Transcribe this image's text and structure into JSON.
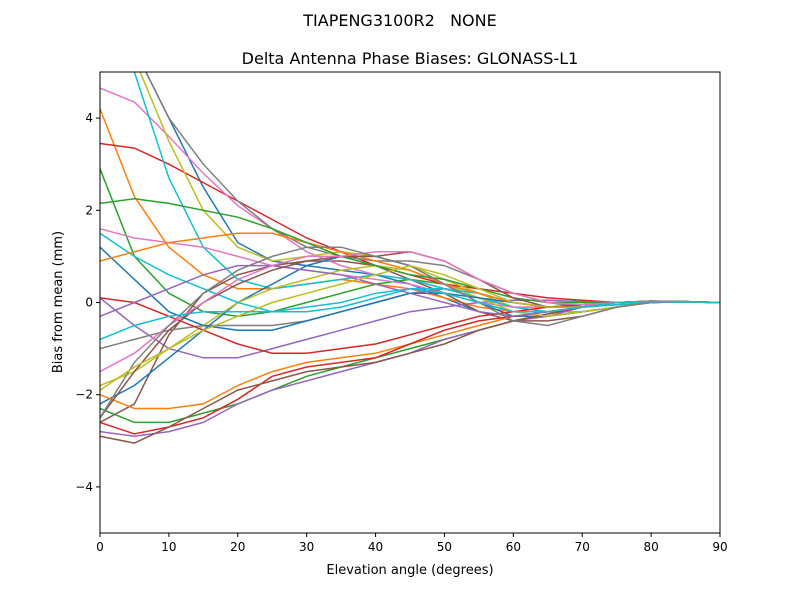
{
  "chart_data": {
    "type": "line",
    "suptitle": "TIAPENG3100R2   NONE",
    "title": "Delta Antenna Phase Biases: GLONASS-L1",
    "xlabel": "Elevation angle (degrees)",
    "ylabel": "Bias from mean (mm)",
    "xlim": [
      0,
      90
    ],
    "ylim": [
      -5,
      5
    ],
    "xticks": [
      0,
      10,
      20,
      30,
      40,
      50,
      60,
      70,
      80,
      90
    ],
    "yticks": [
      -4,
      -2,
      0,
      2,
      4
    ],
    "ytick_labels": [
      "−4",
      "−2",
      "0",
      "2",
      "4"
    ],
    "grid": false,
    "colors": [
      "#1f77b4",
      "#ff7f0e",
      "#2ca02c",
      "#d62728",
      "#9467bd",
      "#8c564b",
      "#e377c2",
      "#7f7f7f",
      "#bcbd22",
      "#17becf"
    ],
    "x": [
      0,
      5,
      10,
      15,
      20,
      25,
      30,
      35,
      40,
      45,
      50,
      55,
      60,
      65,
      70,
      75,
      80,
      85,
      90
    ],
    "series": [
      {
        "values": [
          6.5,
          5.5,
          4,
          2.5,
          1.3,
          0.9,
          0.8,
          0.7,
          0.6,
          0.4,
          0.1,
          -0.2,
          -0.3,
          -0.3,
          -0.2,
          -0.1,
          0,
          0.02,
          0
        ]
      },
      {
        "values": [
          4.2,
          2.3,
          1.2,
          0.6,
          0.3,
          0.3,
          0.4,
          0.5,
          0.4,
          0.3,
          0.1,
          -0.1,
          -0.2,
          -0.2,
          -0.1,
          0,
          0.03,
          0.02,
          0
        ]
      },
      {
        "values": [
          2.9,
          1.0,
          0.2,
          -0.2,
          -0.3,
          -0.2,
          0,
          0.2,
          0.4,
          0.5,
          0.4,
          0.2,
          0,
          -0.1,
          -0.1,
          0,
          0.02,
          0.01,
          0
        ]
      },
      {
        "values": [
          3.45,
          3.35,
          3.0,
          2.6,
          2.2,
          1.8,
          1.4,
          1.1,
          0.8,
          0.6,
          0.4,
          0.3,
          0.2,
          0.1,
          0.05,
          0,
          0.02,
          0.01,
          0
        ]
      },
      {
        "values": [
          0.1,
          -0.5,
          -1.0,
          -1.2,
          -1.2,
          -1.0,
          -0.8,
          -0.6,
          -0.4,
          -0.2,
          -0.1,
          0,
          0.05,
          0.05,
          0.02,
          0,
          0.02,
          0.01,
          0
        ]
      },
      {
        "values": [
          -2.6,
          -2.2,
          -0.7,
          0.2,
          0.6,
          0.8,
          0.9,
          0.9,
          0.8,
          0.5,
          0.2,
          -0.2,
          -0.4,
          -0.4,
          -0.3,
          -0.1,
          0,
          0.02,
          0
        ]
      },
      {
        "values": [
          4.65,
          4.35,
          3.6,
          2.8,
          2.1,
          1.6,
          1.1,
          0.8,
          0.6,
          0.5,
          0.3,
          0.1,
          -0.1,
          -0.1,
          -0.05,
          0,
          0.03,
          0.02,
          0
        ]
      },
      {
        "values": [
          6,
          5.5,
          4.0,
          3.0,
          2.2,
          1.6,
          1.2,
          1.0,
          0.9,
          0.9,
          0.8,
          0.5,
          0.2,
          0,
          -0.1,
          -0.05,
          0,
          0.02,
          0
        ]
      },
      {
        "values": [
          6,
          5.3,
          3.5,
          2.0,
          1.2,
          0.9,
          1.0,
          1.1,
          1.0,
          0.8,
          0.5,
          0.2,
          -0.1,
          -0.2,
          -0.2,
          -0.1,
          0,
          0.02,
          0
        ]
      },
      {
        "values": [
          6,
          5,
          2.7,
          1.2,
          0.5,
          0.3,
          0.4,
          0.5,
          0.6,
          0.5,
          0.3,
          0.1,
          -0.1,
          -0.2,
          -0.1,
          -0.05,
          0,
          0.02,
          0
        ]
      },
      {
        "values": [
          -2.2,
          -1.8,
          -1.2,
          -0.6,
          0,
          0.4,
          0.8,
          1.0,
          1.0,
          0.8,
          0.4,
          0,
          -0.3,
          -0.3,
          -0.2,
          -0.1,
          0,
          0.01,
          0
        ]
      },
      {
        "values": [
          -2.0,
          -2.3,
          -2.3,
          -2.2,
          -1.8,
          -1.5,
          -1.3,
          -1.2,
          -1.1,
          -0.9,
          -0.7,
          -0.5,
          -0.3,
          -0.2,
          -0.1,
          0,
          0.02,
          0.01,
          0
        ]
      },
      {
        "values": [
          -2.3,
          -2.6,
          -2.6,
          -2.4,
          -2.2,
          -1.9,
          -1.6,
          -1.4,
          -1.2,
          -1.0,
          -0.8,
          -0.6,
          -0.4,
          -0.25,
          -0.1,
          0,
          0.03,
          0.02,
          0
        ]
      },
      {
        "values": [
          -2.6,
          -2.85,
          -2.7,
          -2.5,
          -2.1,
          -1.6,
          -1.4,
          -1.3,
          -1.2,
          -0.9,
          -0.6,
          -0.4,
          -0.3,
          -0.2,
          -0.1,
          0,
          0.02,
          0.01,
          0
        ]
      },
      {
        "values": [
          -2.8,
          -2.9,
          -2.8,
          -2.6,
          -2.2,
          -1.9,
          -1.7,
          -1.5,
          -1.3,
          -1.1,
          -0.8,
          -0.6,
          -0.4,
          -0.3,
          -0.1,
          0,
          0.03,
          0.01,
          0
        ]
      },
      {
        "values": [
          -2.9,
          -3.05,
          -2.7,
          -2.3,
          -1.9,
          -1.7,
          -1.5,
          -1.4,
          -1.3,
          -1.1,
          -0.9,
          -0.6,
          -0.4,
          -0.25,
          -0.1,
          0,
          0.02,
          0.01,
          0
        ]
      },
      {
        "values": [
          1.6,
          1.4,
          1.3,
          1.2,
          1.0,
          0.8,
          0.7,
          0.6,
          0.5,
          0.4,
          0.2,
          0,
          -0.1,
          -0.1,
          -0.05,
          0,
          0.02,
          0.01,
          0
        ]
      },
      {
        "values": [
          -1.0,
          -0.8,
          -0.6,
          -0.5,
          -0.5,
          -0.5,
          -0.4,
          -0.2,
          0,
          0.2,
          0.3,
          0.2,
          0,
          -0.1,
          -0.1,
          0,
          0.02,
          0.01,
          0
        ]
      },
      {
        "values": [
          -1.8,
          -1.5,
          -1.0,
          -0.5,
          0,
          0.3,
          0.5,
          0.7,
          0.8,
          0.7,
          0.4,
          0.1,
          -0.2,
          -0.3,
          -0.2,
          -0.1,
          0,
          0.02,
          0
        ]
      },
      {
        "values": [
          1.5,
          1.0,
          0.6,
          0.3,
          0.0,
          -0.2,
          -0.2,
          -0.1,
          0.1,
          0.3,
          0.3,
          0.2,
          0,
          -0.1,
          -0.1,
          0,
          0.02,
          0.01,
          0
        ]
      },
      {
        "values": [
          1.2,
          0.5,
          -0.2,
          -0.5,
          -0.6,
          -0.6,
          -0.4,
          -0.2,
          0,
          0.2,
          0.2,
          0.1,
          0,
          -0.1,
          -0.05,
          0,
          0.02,
          0.01,
          0
        ]
      },
      {
        "values": [
          0.9,
          1.1,
          1.3,
          1.4,
          1.5,
          1.5,
          1.3,
          1.1,
          0.9,
          0.7,
          0.4,
          0.2,
          0,
          -0.1,
          -0.05,
          0,
          0.02,
          0.01,
          0
        ]
      },
      {
        "values": [
          2.15,
          2.25,
          2.15,
          2.0,
          1.85,
          1.6,
          1.3,
          1.0,
          0.8,
          0.6,
          0.5,
          0.3,
          0.1,
          0,
          0,
          0,
          0.03,
          0.02,
          0
        ]
      },
      {
        "values": [
          0.1,
          0.0,
          -0.3,
          -0.6,
          -0.9,
          -1.1,
          -1.1,
          -1.0,
          -0.9,
          -0.7,
          -0.5,
          -0.3,
          -0.2,
          -0.1,
          -0.05,
          0,
          0.02,
          0.01,
          0
        ]
      },
      {
        "values": [
          -0.3,
          0.0,
          0.3,
          0.6,
          0.8,
          0.8,
          0.7,
          0.6,
          0.4,
          0.2,
          0,
          -0.2,
          -0.3,
          -0.2,
          -0.1,
          0,
          0.02,
          0.01,
          0
        ]
      },
      {
        "values": [
          -2.5,
          -1.5,
          -0.6,
          0,
          0.4,
          0.7,
          0.9,
          1.0,
          1.0,
          1.1,
          0.9,
          0.5,
          0.1,
          -0.1,
          -0.1,
          0,
          0.03,
          0.02,
          0
        ]
      },
      {
        "values": [
          -1.5,
          -1.1,
          -0.5,
          0,
          0.5,
          0.8,
          1.0,
          1.0,
          1.1,
          1.1,
          0.9,
          0.5,
          0.2,
          0,
          -0.05,
          0,
          0.02,
          0.01,
          0
        ]
      },
      {
        "values": [
          -2.5,
          -1.3,
          -0.5,
          0.2,
          0.7,
          1.0,
          1.2,
          1.2,
          1.0,
          0.8,
          0.4,
          0,
          -0.4,
          -0.5,
          -0.3,
          -0.1,
          0,
          0.02,
          0
        ]
      },
      {
        "values": [
          -1.9,
          -1.4,
          -1.0,
          -0.6,
          -0.3,
          0,
          0.2,
          0.4,
          0.6,
          0.8,
          0.6,
          0.3,
          0,
          -0.1,
          -0.1,
          0,
          0.02,
          0.01,
          0
        ]
      },
      {
        "values": [
          -0.8,
          -0.5,
          -0.3,
          -0.2,
          -0.2,
          -0.2,
          -0.1,
          0.0,
          0.2,
          0.3,
          0.2,
          0,
          -0.2,
          -0.2,
          -0.1,
          0,
          0.02,
          0.01,
          0
        ]
      }
    ]
  }
}
